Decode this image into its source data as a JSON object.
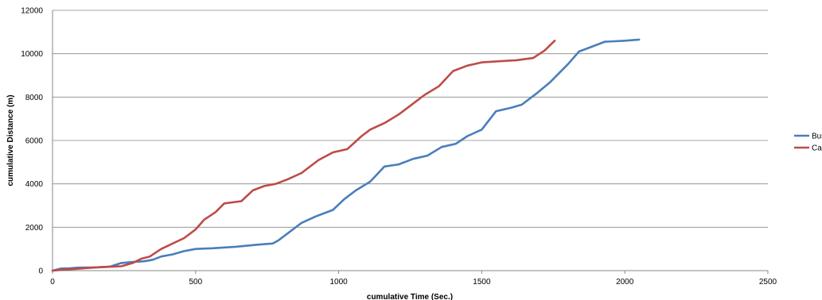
{
  "chart_data": {
    "type": "line",
    "title": "",
    "xlabel": "cumulative Time (Sec.)",
    "ylabel": "cumulative Distance (m)",
    "xlim": [
      0,
      2500
    ],
    "ylim": [
      0,
      12000
    ],
    "xticks": [
      0,
      500,
      1000,
      1500,
      2000,
      2500
    ],
    "yticks": [
      0,
      2000,
      4000,
      6000,
      8000,
      10000,
      12000
    ],
    "grid": "horizontal",
    "legend_position": "right",
    "series": [
      {
        "name": "Bus",
        "color": "#4a7ebb",
        "points": [
          [
            0,
            0
          ],
          [
            30,
            100
          ],
          [
            60,
            110
          ],
          [
            90,
            140
          ],
          [
            150,
            150
          ],
          [
            200,
            180
          ],
          [
            240,
            350
          ],
          [
            280,
            400
          ],
          [
            320,
            430
          ],
          [
            350,
            500
          ],
          [
            380,
            650
          ],
          [
            420,
            750
          ],
          [
            460,
            900
          ],
          [
            500,
            1000
          ],
          [
            560,
            1030
          ],
          [
            640,
            1100
          ],
          [
            720,
            1200
          ],
          [
            770,
            1250
          ],
          [
            790,
            1400
          ],
          [
            830,
            1800
          ],
          [
            870,
            2200
          ],
          [
            920,
            2500
          ],
          [
            980,
            2800
          ],
          [
            1020,
            3300
          ],
          [
            1060,
            3700
          ],
          [
            1110,
            4100
          ],
          [
            1160,
            4800
          ],
          [
            1210,
            4900
          ],
          [
            1260,
            5150
          ],
          [
            1310,
            5300
          ],
          [
            1360,
            5700
          ],
          [
            1410,
            5850
          ],
          [
            1450,
            6200
          ],
          [
            1500,
            6500
          ],
          [
            1550,
            7350
          ],
          [
            1600,
            7500
          ],
          [
            1640,
            7650
          ],
          [
            1690,
            8150
          ],
          [
            1740,
            8700
          ],
          [
            1800,
            9500
          ],
          [
            1840,
            10100
          ],
          [
            1880,
            10300
          ],
          [
            1930,
            10550
          ],
          [
            2000,
            10600
          ],
          [
            2050,
            10650
          ]
        ]
      },
      {
        "name": "Car",
        "color": "#be4b48",
        "points": [
          [
            0,
            0
          ],
          [
            50,
            50
          ],
          [
            100,
            100
          ],
          [
            150,
            150
          ],
          [
            200,
            180
          ],
          [
            240,
            200
          ],
          [
            280,
            350
          ],
          [
            310,
            550
          ],
          [
            340,
            650
          ],
          [
            380,
            1000
          ],
          [
            420,
            1250
          ],
          [
            460,
            1500
          ],
          [
            500,
            1900
          ],
          [
            530,
            2350
          ],
          [
            570,
            2700
          ],
          [
            600,
            3100
          ],
          [
            660,
            3200
          ],
          [
            700,
            3700
          ],
          [
            740,
            3900
          ],
          [
            780,
            4000
          ],
          [
            820,
            4200
          ],
          [
            870,
            4500
          ],
          [
            930,
            5100
          ],
          [
            980,
            5450
          ],
          [
            1030,
            5600
          ],
          [
            1080,
            6200
          ],
          [
            1110,
            6500
          ],
          [
            1160,
            6800
          ],
          [
            1210,
            7200
          ],
          [
            1250,
            7600
          ],
          [
            1300,
            8100
          ],
          [
            1350,
            8500
          ],
          [
            1400,
            9200
          ],
          [
            1450,
            9450
          ],
          [
            1500,
            9600
          ],
          [
            1560,
            9650
          ],
          [
            1620,
            9700
          ],
          [
            1680,
            9800
          ],
          [
            1720,
            10150
          ],
          [
            1755,
            10600
          ]
        ]
      }
    ]
  }
}
